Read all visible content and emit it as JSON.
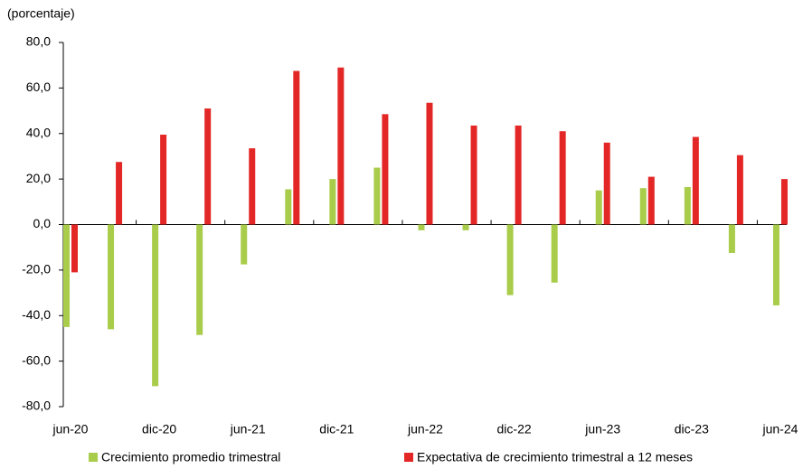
{
  "chart_data": {
    "type": "bar",
    "title": "(porcentaje)",
    "categories": [
      "jun-20",
      null,
      "dic-20",
      null,
      "jun-21",
      null,
      "dic-21",
      null,
      "jun-22",
      null,
      "dic-22",
      null,
      "jun-23",
      null,
      "dic-23",
      null,
      "jun-24"
    ],
    "series": [
      {
        "name": "Crecimiento promedio trimestral",
        "color": "#a9cc4a",
        "values": [
          -45,
          -46,
          -71,
          -48.5,
          -17.5,
          15.5,
          20,
          25,
          -2.5,
          -2.5,
          -31,
          -25.5,
          15,
          16,
          16.5,
          -12.5,
          -35.5
        ]
      },
      {
        "name": "Expectativa de crecimiento trimestral a 12 meses",
        "color": "#e32726",
        "values": [
          -21,
          27.5,
          39.5,
          51,
          33.5,
          67.5,
          69,
          48.5,
          53.5,
          43.5,
          43.5,
          41,
          36,
          21,
          38.5,
          30.5,
          20
        ]
      }
    ],
    "ylim": [
      -80,
      80
    ],
    "yticks": [
      {
        "value": -80,
        "label": "-80,0"
      },
      {
        "value": -60,
        "label": "-60,0"
      },
      {
        "value": -40,
        "label": "-40,0"
      },
      {
        "value": -20,
        "label": "-20,0"
      },
      {
        "value": 0,
        "label": "0,0"
      },
      {
        "value": 20,
        "label": "20,0"
      },
      {
        "value": 40,
        "label": "40,0"
      },
      {
        "value": 60,
        "label": "60,0"
      },
      {
        "value": 80,
        "label": "80,0"
      }
    ],
    "grid": false
  }
}
